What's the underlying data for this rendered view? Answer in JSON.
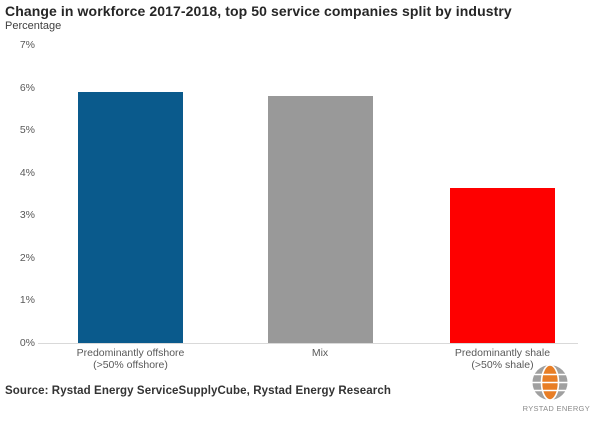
{
  "chart_data": {
    "type": "bar",
    "title": "Change in workforce 2017-2018, top 50 service companies split by industry",
    "ylabel": "Percentage",
    "categories": [
      "Predominantly offshore (>50% offshore)",
      "Mix",
      "Predominantly shale (>50% shale)"
    ],
    "category_lines": [
      [
        "Predominantly offshore",
        "(>50% offshore)"
      ],
      [
        "Mix"
      ],
      [
        "Predominantly shale",
        "(>50% shale)"
      ]
    ],
    "values": [
      5.9,
      5.8,
      3.65
    ],
    "bar_colors": [
      "#0a5a8c",
      "#999999",
      "#fe0000"
    ],
    "ylim": [
      0,
      7
    ],
    "ytick_labels": [
      "0%",
      "1%",
      "2%",
      "3%",
      "4%",
      "5%",
      "6%",
      "7%"
    ],
    "grid": false,
    "legend": "none",
    "axis_line_color": "#d9d9d9",
    "tick_label_color": "#595959"
  },
  "footer": {
    "source": "Source: Rystad Energy ServiceSupplyCube, Rystad Energy Research",
    "logo_text": "RYSTAD ENERGY",
    "logo_orange": "#e87e26",
    "logo_gray": "#a0a0a0"
  }
}
